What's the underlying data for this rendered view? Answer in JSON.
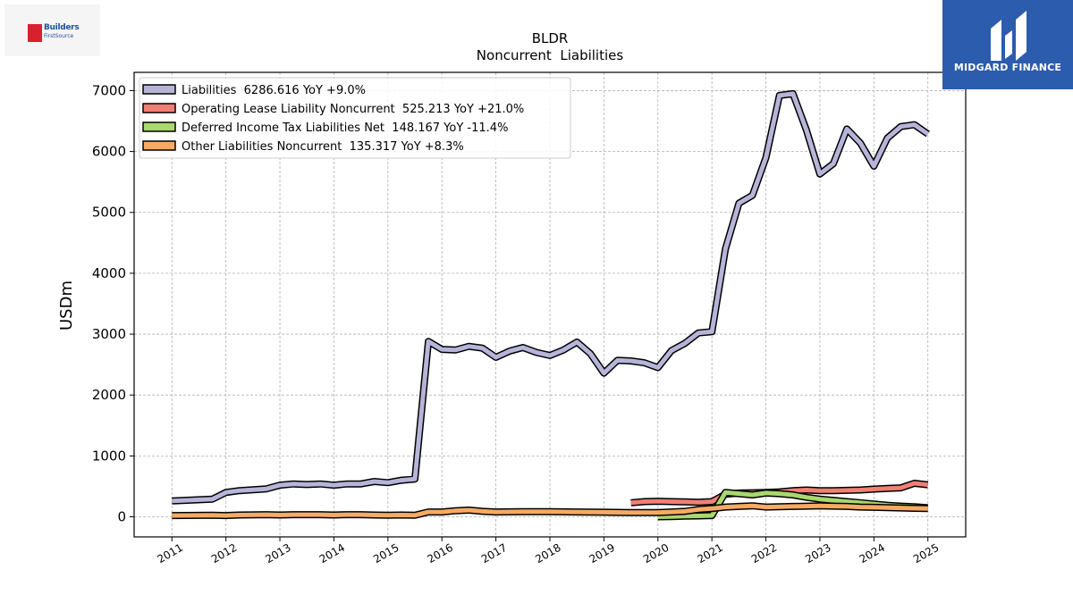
{
  "chart_data": {
    "type": "line",
    "title": "BLDR",
    "subtitle": "Noncurrent  Liabilities",
    "ylabel": "USDm",
    "xlabel": "",
    "xlim": [
      2010.3,
      2025.7
    ],
    "ylim": [
      -330,
      7300
    ],
    "yticks": [
      0,
      1000,
      2000,
      3000,
      4000,
      5000,
      6000,
      7000
    ],
    "xticks": [
      2011,
      2012,
      2013,
      2014,
      2015,
      2016,
      2017,
      2018,
      2019,
      2020,
      2021,
      2022,
      2023,
      2024,
      2025
    ],
    "grid": true,
    "legend_position": "top-left",
    "series": [
      {
        "name": "Liabilities  6286.616 YoY +9.0%",
        "color": "#b7b4d9",
        "x": [
          2011.0,
          2011.75,
          2012.0,
          2012.25,
          2012.75,
          2013.0,
          2013.25,
          2013.5,
          2013.75,
          2014.0,
          2014.25,
          2014.5,
          2014.75,
          2015.0,
          2015.25,
          2015.5,
          2015.75,
          2016.0,
          2016.25,
          2016.5,
          2016.75,
          2017.0,
          2017.25,
          2017.5,
          2017.75,
          2018.0,
          2018.25,
          2018.5,
          2018.75,
          2019.0,
          2019.25,
          2019.5,
          2019.75,
          2020.0,
          2020.25,
          2020.5,
          2020.75,
          2021.0,
          2021.25,
          2021.5,
          2021.75,
          2022.0,
          2022.25,
          2022.5,
          2022.75,
          2023.0,
          2023.25,
          2023.5,
          2023.75,
          2024.0,
          2024.25,
          2024.5,
          2024.75,
          2025.0
        ],
        "values": [
          260,
          290,
          400,
          430,
          460,
          520,
          540,
          530,
          540,
          520,
          540,
          540,
          580,
          560,
          600,
          620,
          2880,
          2750,
          2740,
          2800,
          2770,
          2620,
          2720,
          2780,
          2700,
          2650,
          2740,
          2870,
          2680,
          2360,
          2570,
          2560,
          2530,
          2450,
          2730,
          2850,
          3020,
          3040,
          4400,
          5150,
          5280,
          5900,
          6920,
          6950,
          6350,
          5630,
          5800,
          6370,
          6140,
          5760,
          6220,
          6410,
          6440,
          6287
        ]
      },
      {
        "name": "Operating Lease Liability Noncurrent  525.213 YoY +21.0%",
        "color": "#f07f74",
        "x": [
          2019.5,
          2019.75,
          2020.0,
          2020.25,
          2020.5,
          2020.75,
          2021.0,
          2021.25,
          2021.5,
          2021.75,
          2022.0,
          2022.25,
          2022.5,
          2022.75,
          2023.0,
          2023.25,
          2023.5,
          2023.75,
          2024.0,
          2024.25,
          2024.5,
          2024.75,
          2025.0
        ],
        "values": [
          230,
          250,
          255,
          250,
          245,
          240,
          250,
          370,
          390,
          395,
          400,
          410,
          430,
          440,
          430,
          430,
          435,
          440,
          455,
          465,
          475,
          550,
          525
        ]
      },
      {
        "name": "Deferred Income Tax Liabilities Net  148.167 YoY -11.4%",
        "color": "#a9d86e",
        "x": [
          2020.0,
          2020.25,
          2020.5,
          2020.75,
          2021.0,
          2021.25,
          2021.5,
          2021.75,
          2022.0,
          2022.25,
          2022.5,
          2022.75,
          2023.0,
          2023.25,
          2023.5,
          2023.75,
          2024.0,
          2024.25,
          2024.5,
          2024.75,
          2025.0
        ],
        "values": [
          0,
          5,
          10,
          15,
          20,
          400,
          380,
          360,
          390,
          380,
          360,
          320,
          290,
          270,
          250,
          230,
          210,
          190,
          175,
          165,
          148
        ]
      },
      {
        "name": "Other Liabilities Noncurrent  135.317 YoY +8.3%",
        "color": "#f6aa63",
        "x": [
          2011.0,
          2011.75,
          2012.0,
          2012.25,
          2012.75,
          2013.0,
          2013.25,
          2013.5,
          2013.75,
          2014.0,
          2014.25,
          2014.5,
          2014.75,
          2015.0,
          2015.25,
          2015.5,
          2015.75,
          2016.0,
          2016.25,
          2016.5,
          2016.75,
          2017.0,
          2017.5,
          2018.0,
          2018.5,
          2019.0,
          2019.5,
          2020.0,
          2020.25,
          2020.5,
          2020.75,
          2021.0,
          2021.25,
          2021.5,
          2021.75,
          2022.0,
          2022.25,
          2022.5,
          2022.75,
          2023.0,
          2023.25,
          2023.5,
          2023.75,
          2024.0,
          2024.25,
          2024.5,
          2024.75,
          2025.0
        ],
        "values": [
          20,
          25,
          20,
          30,
          35,
          30,
          35,
          35,
          35,
          30,
          35,
          35,
          30,
          25,
          30,
          25,
          80,
          80,
          100,
          110,
          90,
          80,
          85,
          85,
          80,
          75,
          70,
          70,
          80,
          90,
          120,
          135,
          160,
          170,
          180,
          160,
          165,
          170,
          175,
          180,
          175,
          170,
          160,
          155,
          150,
          145,
          140,
          135
        ]
      }
    ]
  },
  "logos": {
    "left": {
      "line1": "Builders",
      "line2": "FirstSource",
      "mark_color": "#d9202f",
      "text_color": "#1f4e9c"
    },
    "right": {
      "brand": "MIDGARD FINANCE",
      "bg_color": "#2b5cad"
    }
  }
}
